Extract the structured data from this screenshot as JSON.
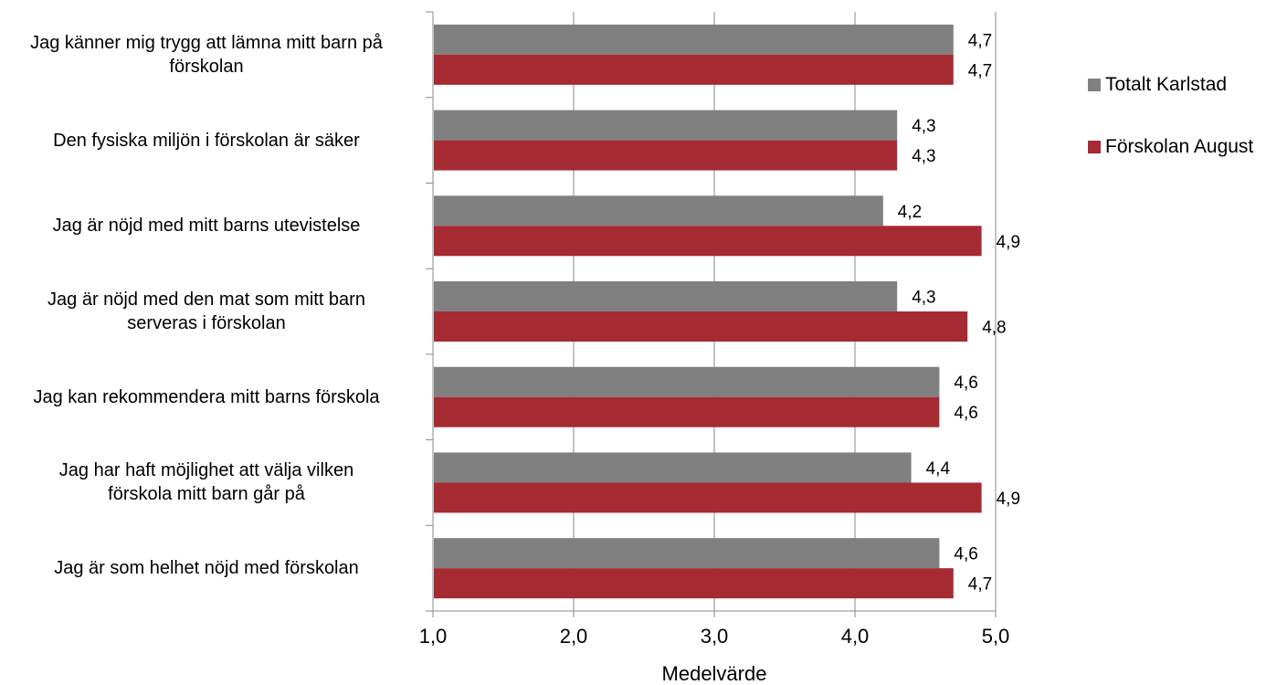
{
  "chart_data": {
    "type": "bar",
    "orientation": "horizontal",
    "categories": [
      "Jag känner mig trygg att lämna mitt barn på förskolan",
      "Den fysiska miljön i förskolan är säker",
      "Jag är nöjd med mitt barns utevistelse",
      "Jag är nöjd med den mat som mitt barn serveras i förskolan",
      "Jag kan rekommendera mitt barns förskola",
      "Jag har haft möjlighet att välja vilken förskola mitt barn går på",
      "Jag är som helhet nöjd med förskolan"
    ],
    "category_lines": [
      [
        "Jag känner mig trygg att lämna mitt barn på",
        "förskolan"
      ],
      [
        "Den fysiska miljön i förskolan är säker"
      ],
      [
        "Jag är nöjd med mitt barns utevistelse"
      ],
      [
        "Jag är nöjd med den mat som mitt barn",
        "serveras i förskolan"
      ],
      [
        "Jag kan rekommendera mitt barns förskola"
      ],
      [
        "Jag har haft möjlighet att välja vilken",
        "förskola mitt barn går på"
      ],
      [
        "Jag är som helhet nöjd med förskolan"
      ]
    ],
    "series": [
      {
        "name": "Totalt Karlstad",
        "color": "#808080",
        "values": [
          4.7,
          4.3,
          4.2,
          4.3,
          4.6,
          4.4,
          4.6
        ],
        "labels": [
          "4,7",
          "4,3",
          "4,2",
          "4,3",
          "4,6",
          "4,4",
          "4,6"
        ]
      },
      {
        "name": "Förskolan August",
        "color": "#A52A32",
        "values": [
          4.7,
          4.3,
          4.9,
          4.8,
          4.6,
          4.9,
          4.7
        ],
        "labels": [
          "4,7",
          "4,3",
          "4,9",
          "4,8",
          "4,6",
          "4,9",
          "4,7"
        ]
      }
    ],
    "xlim": [
      1.0,
      5.0
    ],
    "xticks": [
      1.0,
      2.0,
      3.0,
      4.0,
      5.0
    ],
    "xtick_labels": [
      "1,0",
      "2,0",
      "3,0",
      "4,0",
      "5,0"
    ],
    "xlabel": "Medelvärde",
    "grid": "vertical",
    "legend_position": "right"
  }
}
